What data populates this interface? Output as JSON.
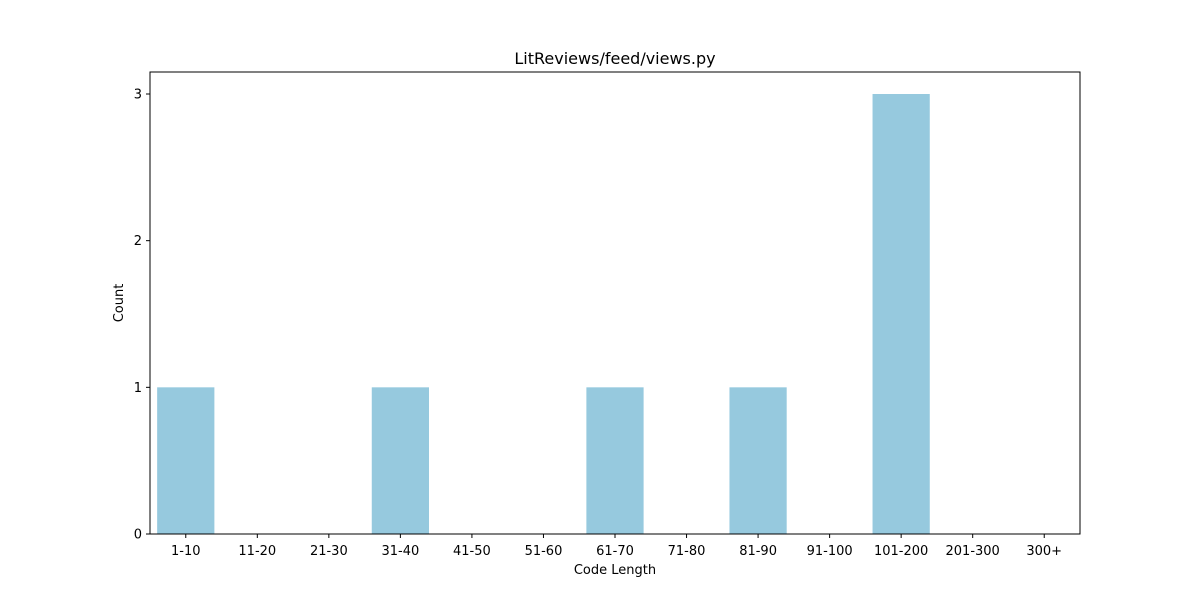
{
  "chart_data": {
    "type": "bar",
    "title": "LitReviews/feed/views.py",
    "xlabel": "Code Length",
    "ylabel": "Count",
    "categories": [
      "1-10",
      "11-20",
      "21-30",
      "31-40",
      "41-50",
      "51-60",
      "61-70",
      "71-80",
      "81-90",
      "91-100",
      "101-200",
      "201-300",
      "300+"
    ],
    "values": [
      1,
      0,
      0,
      1,
      0,
      0,
      1,
      0,
      1,
      0,
      3,
      0,
      0
    ],
    "ylim": [
      0,
      3.15
    ],
    "yticks": [
      0,
      1,
      2,
      3
    ],
    "grid": false,
    "bar_color": "#96c9de"
  }
}
